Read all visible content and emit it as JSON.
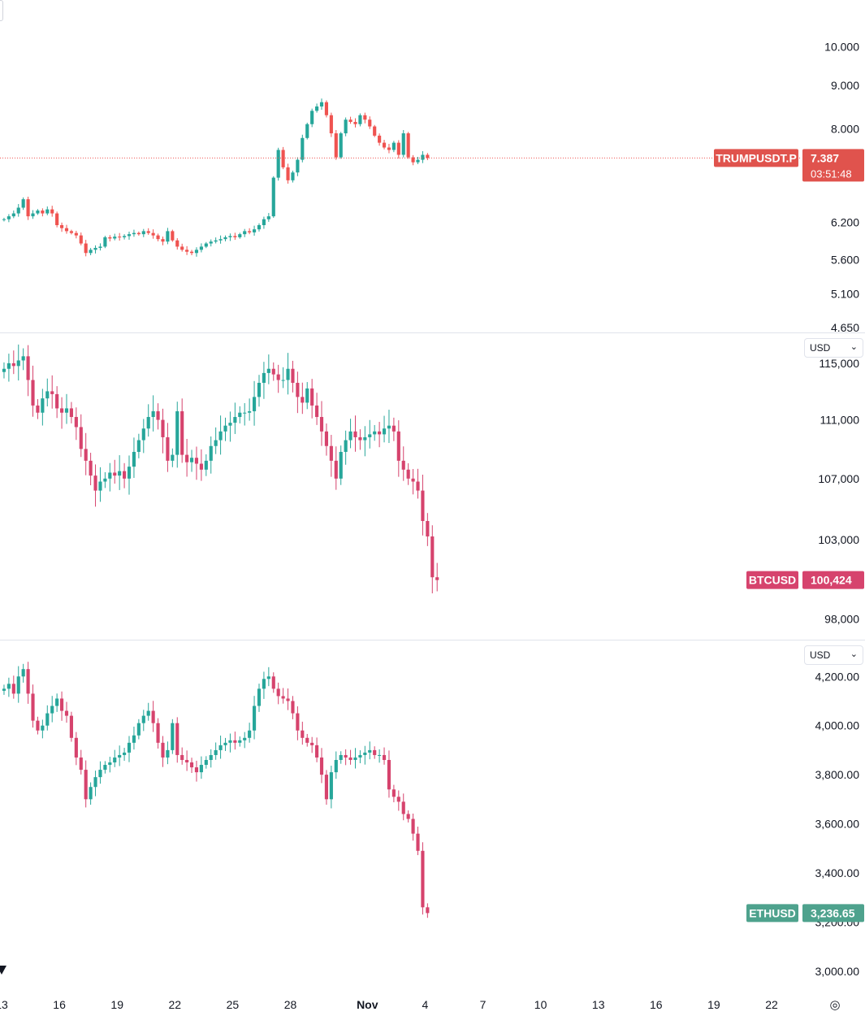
{
  "chart_data": [
    {
      "type": "candlestick",
      "symbol": "TRUMPUSDT.P",
      "last_price": "7.387",
      "countdown": "03:51:48",
      "y_ticks": [
        "10.000",
        "9.000",
        "8.000",
        "6.200",
        "5.600",
        "5.100",
        "4.650"
      ],
      "ylim": [
        4.6,
        10.4
      ],
      "y_scale": "log",
      "price_color": "#e0534d",
      "closes": [
        6.25,
        6.3,
        6.35,
        6.45,
        6.6,
        6.3,
        6.35,
        6.4,
        6.35,
        6.42,
        6.35,
        6.15,
        6.1,
        6.05,
        6.02,
        5.98,
        5.85,
        5.7,
        5.75,
        5.78,
        5.8,
        5.95,
        5.93,
        5.96,
        5.95,
        5.97,
        6.0,
        6.02,
        6.0,
        6.05,
        6.02,
        5.98,
        5.92,
        5.88,
        6.05,
        5.9,
        5.8,
        5.75,
        5.72,
        5.7,
        5.75,
        5.8,
        5.85,
        5.88,
        5.9,
        5.92,
        5.95,
        5.97,
        5.95,
        6.0,
        6.05,
        6.03,
        6.08,
        6.15,
        6.25,
        6.3,
        7.0,
        7.55,
        7.2,
        6.95,
        7.1,
        7.35,
        7.8,
        8.1,
        8.4,
        8.5,
        8.6,
        8.3,
        7.9,
        7.4,
        7.9,
        8.2,
        8.15,
        8.1,
        8.3,
        8.2,
        8.05,
        7.85,
        7.7,
        7.6,
        7.55,
        7.7,
        7.45,
        7.9,
        7.4,
        7.3,
        7.35,
        7.45,
        7.387
      ],
      "x_ticks": [
        {
          "label": "13",
          "day": 0
        },
        {
          "label": "16",
          "day": 3
        },
        {
          "label": "19",
          "day": 6
        },
        {
          "label": "22",
          "day": 9
        },
        {
          "label": "25",
          "day": 12
        },
        {
          "label": "28",
          "day": 15
        },
        {
          "label": "Nov",
          "day": 19
        },
        {
          "label": "4",
          "day": 22
        },
        {
          "label": "7",
          "day": 25
        },
        {
          "label": "10",
          "day": 28
        },
        {
          "label": "13",
          "day": 31
        },
        {
          "label": "16",
          "day": 34
        },
        {
          "label": "19",
          "day": 37
        },
        {
          "label": "22",
          "day": 40
        }
      ]
    },
    {
      "type": "candlestick",
      "symbol": "BTCUSD",
      "last_price": "100,424",
      "currency": "USD",
      "y_ticks": [
        "115,000",
        "111,000",
        "107,000",
        "103,000",
        "98,000"
      ],
      "ylim": [
        96800,
        116700
      ],
      "y_scale": "log",
      "price_color": "#d6436d",
      "closes": [
        114600,
        115000,
        114800,
        115200,
        115500,
        113800,
        112000,
        111500,
        112500,
        113000,
        112800,
        111800,
        111500,
        111800,
        111200,
        110500,
        109000,
        108200,
        107200,
        106200,
        106800,
        107000,
        107400,
        107200,
        107500,
        107000,
        107800,
        108800,
        109600,
        110400,
        111200,
        111600,
        111000,
        109800,
        108200,
        108600,
        111600,
        108600,
        108100,
        108400,
        108000,
        107600,
        108200,
        109200,
        109600,
        110200,
        110600,
        110800,
        111200,
        111500,
        111500,
        111600,
        112600,
        113600,
        114300,
        114600,
        114200,
        113800,
        113800,
        114600,
        113600,
        112600,
        112200,
        113200,
        112000,
        111200,
        110200,
        109200,
        108200,
        107000,
        108800,
        109600,
        110200,
        109800,
        109600,
        109800,
        110000,
        110200,
        110000,
        110400,
        110600,
        110200,
        108200,
        107600,
        107000,
        106800,
        106200,
        104200,
        103200,
        100600,
        100424
      ],
      "x_days": 22.5
    },
    {
      "type": "candlestick",
      "symbol": "ETHUSD",
      "last_price": "3,236.65",
      "currency": "USD",
      "y_ticks": [
        "4,200.00",
        "4,000.00",
        "3,800.00",
        "3,600.00",
        "3,400.00",
        "3,200.00",
        "3,000.00"
      ],
      "ylim": [
        2930,
        4320
      ],
      "y_scale": "linear",
      "price_color": "#4ea28d",
      "closes": [
        4150,
        4170,
        4130,
        4200,
        4230,
        4130,
        4020,
        3980,
        4000,
        4050,
        4080,
        4110,
        4060,
        4040,
        3950,
        3870,
        3820,
        3700,
        3750,
        3790,
        3820,
        3840,
        3850,
        3870,
        3880,
        3890,
        3930,
        3960,
        4010,
        4040,
        4060,
        4010,
        3930,
        3870,
        3900,
        4010,
        3880,
        3860,
        3850,
        3830,
        3810,
        3840,
        3860,
        3880,
        3900,
        3920,
        3930,
        3940,
        3930,
        3940,
        3950,
        3980,
        4080,
        4150,
        4190,
        4200,
        4150,
        4120,
        4110,
        4100,
        4050,
        3980,
        3950,
        3930,
        3920,
        3870,
        3800,
        3700,
        3810,
        3860,
        3880,
        3870,
        3860,
        3870,
        3880,
        3890,
        3900,
        3880,
        3880,
        3860,
        3740,
        3710,
        3690,
        3640,
        3620,
        3560,
        3490,
        3260,
        3236.65
      ]
    }
  ],
  "toolbar": {
    "settings_icon": "gear-icon"
  }
}
